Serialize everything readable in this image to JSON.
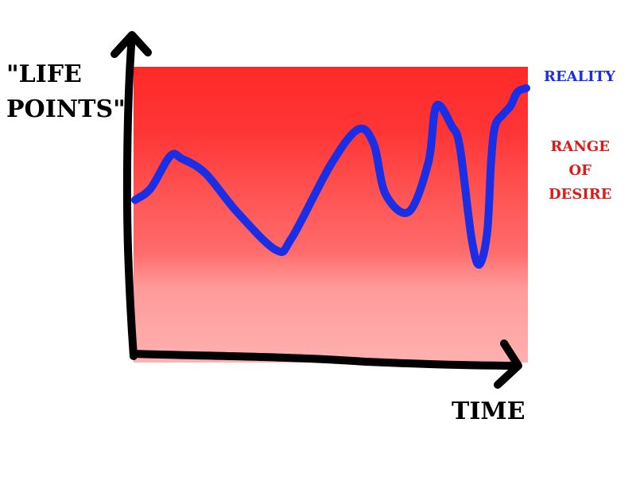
{
  "chart_data": {
    "type": "line",
    "ylabel_lines": [
      "\"LIFE",
      "POINTS\""
    ],
    "xlabel": "TIME",
    "xlim": [
      0,
      100
    ],
    "ylim": [
      0,
      100
    ],
    "band": {
      "name_lines": [
        "RANGE",
        "OF",
        "DESIRE"
      ],
      "color": "#ff2a2a"
    },
    "series": [
      {
        "name": "REALITY",
        "color": "#1a2ee6",
        "x": [
          0,
          4,
          9,
          12,
          18,
          26,
          36,
          40,
          50,
          57,
          61,
          64,
          70,
          75,
          77,
          81,
          83,
          86,
          88,
          90,
          91,
          92,
          94,
          96,
          97,
          98,
          100
        ],
        "y": [
          55,
          59,
          70,
          69,
          64,
          51,
          38,
          42,
          67,
          79,
          74,
          57,
          51,
          68,
          87,
          80,
          73,
          42,
          33,
          44,
          68,
          80,
          84,
          87,
          90,
          92,
          93
        ]
      }
    ],
    "grid": false,
    "legend": "right"
  }
}
